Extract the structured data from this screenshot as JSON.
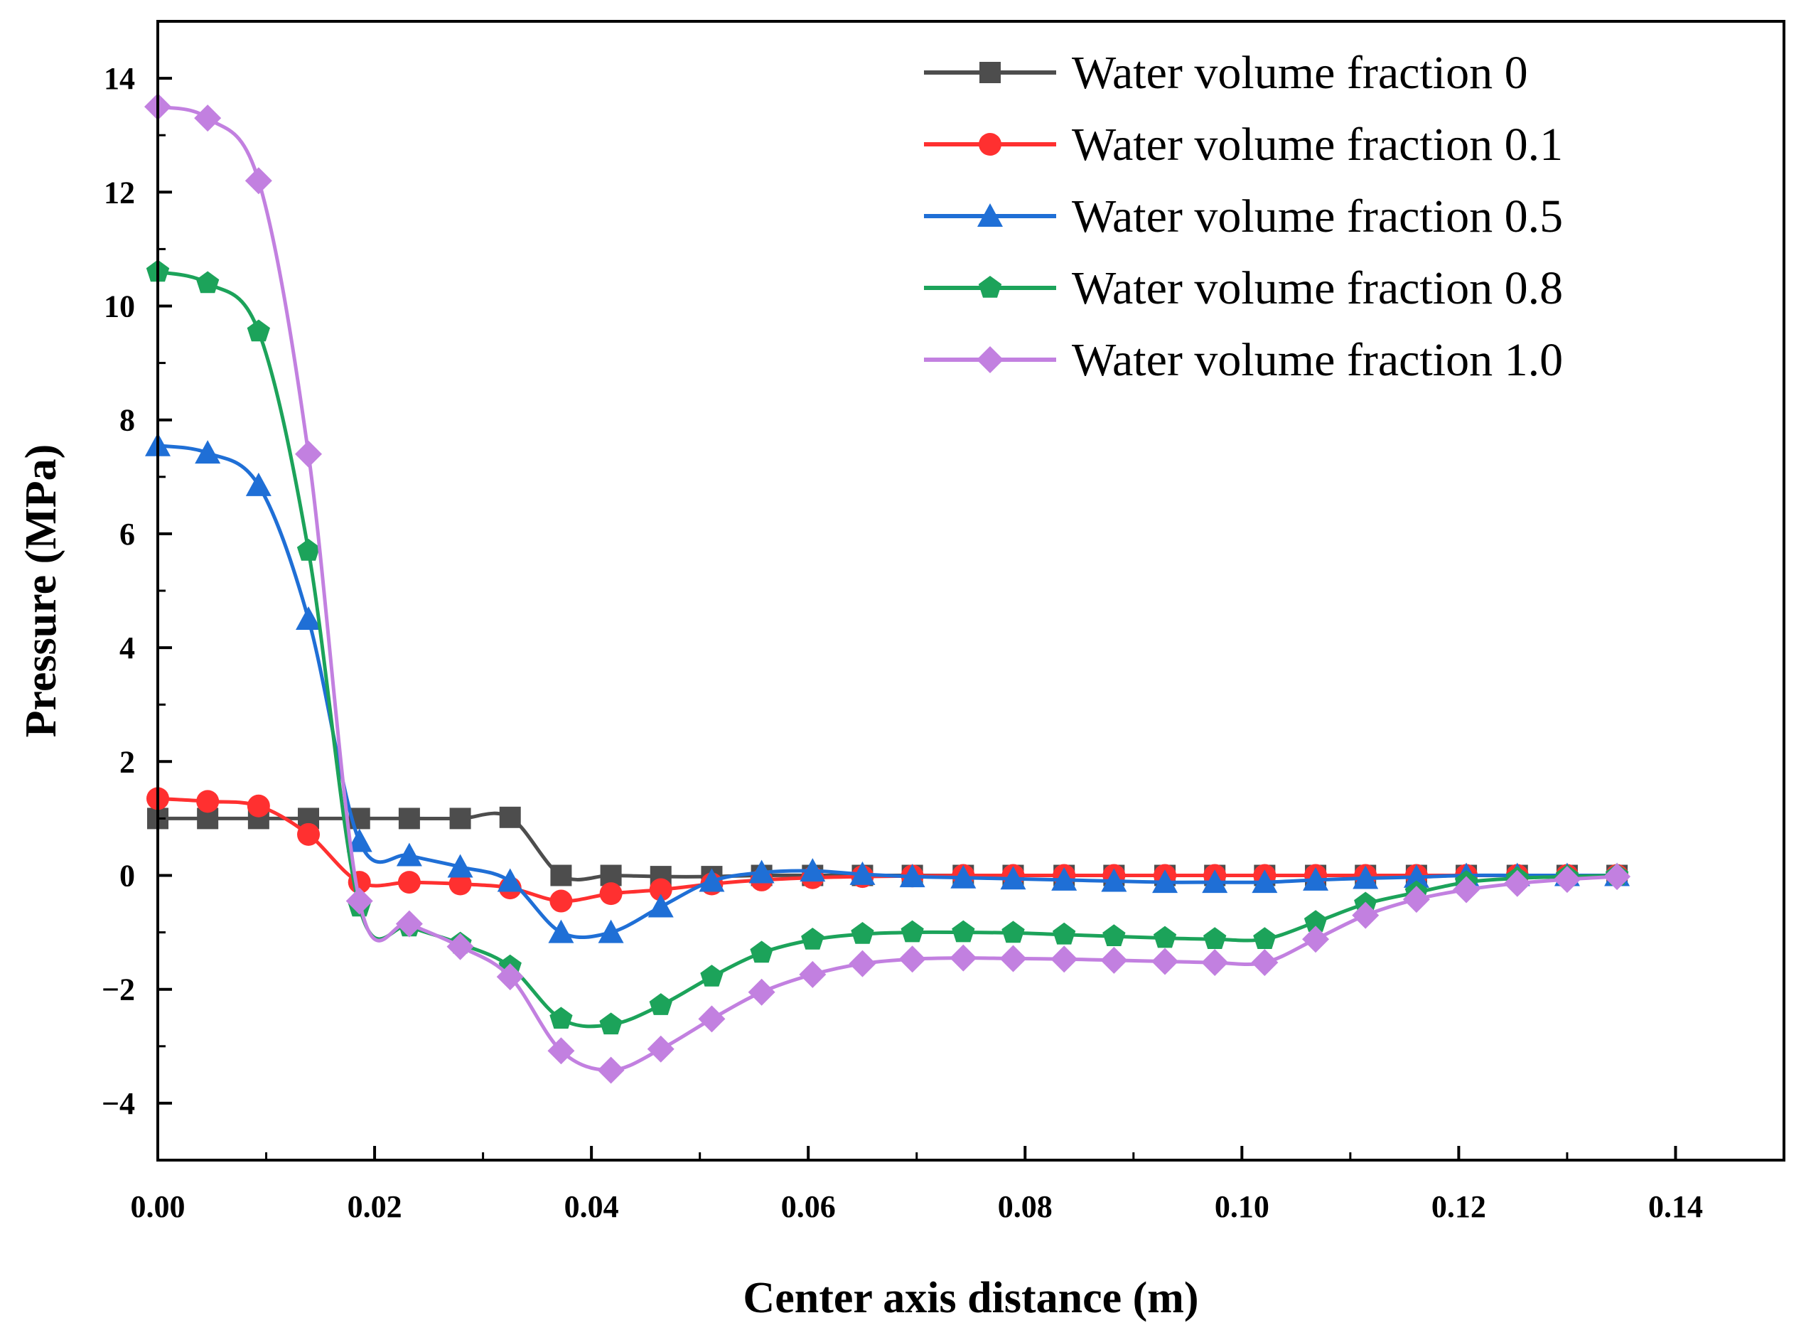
{
  "chart_data": {
    "type": "line",
    "title": "",
    "xlabel": "Center axis distance (m)",
    "ylabel": "Pressure (MPa)",
    "xlim": [
      0,
      0.15
    ],
    "ylim": [
      -5,
      15
    ],
    "xticks": [
      0.0,
      0.02,
      0.04,
      0.06,
      0.08,
      0.1,
      0.12,
      0.14
    ],
    "xtick_labels": [
      "0.00",
      "0.02",
      "0.04",
      "0.06",
      "0.08",
      "0.10",
      "0.12",
      "0.14"
    ],
    "yticks": [
      -4,
      -2,
      0,
      2,
      4,
      6,
      8,
      10,
      12,
      14
    ],
    "ytick_labels": [
      "−4",
      "−2",
      "0",
      "2",
      "4",
      "6",
      "8",
      "10",
      "12",
      "14"
    ],
    "legend_position": "top-right",
    "x": [
      0.0,
      0.0046,
      0.0093,
      0.0139,
      0.0186,
      0.0232,
      0.0279,
      0.0325,
      0.0372,
      0.0418,
      0.0464,
      0.0511,
      0.0557,
      0.0604,
      0.065,
      0.0696,
      0.0743,
      0.0789,
      0.0836,
      0.0882,
      0.0929,
      0.0975,
      0.1021,
      0.1068,
      0.1114,
      0.1161,
      0.1207,
      0.1254,
      0.13,
      0.1346
    ],
    "series": [
      {
        "name": "Water volume fraction 0",
        "color": "#4d4d4d",
        "marker": "square",
        "values": [
          1.0,
          1.0,
          1.0,
          1.0,
          1.0,
          1.0,
          1.0,
          1.02,
          0.0,
          0.0,
          -0.02,
          -0.02,
          0.0,
          0.0,
          0.0,
          0.0,
          0.0,
          0.0,
          0.0,
          0.0,
          0.0,
          0.0,
          0.0,
          0.0,
          0.0,
          0.0,
          0.0,
          0.0,
          0.0,
          0.0
        ]
      },
      {
        "name": "Water volume fraction 0.1",
        "color": "#ff3030",
        "marker": "circle",
        "values": [
          1.35,
          1.3,
          1.22,
          0.72,
          -0.12,
          -0.12,
          -0.15,
          -0.22,
          -0.45,
          -0.32,
          -0.25,
          -0.15,
          -0.08,
          -0.04,
          -0.02,
          -0.01,
          0.0,
          0.0,
          0.0,
          0.0,
          0.0,
          0.0,
          0.0,
          0.0,
          0.0,
          0.0,
          0.0,
          0.0,
          0.0,
          0.0
        ]
      },
      {
        "name": "Water volume fraction 0.5",
        "color": "#1f6fd6",
        "marker": "triangle",
        "values": [
          7.55,
          7.42,
          6.85,
          4.5,
          0.6,
          0.35,
          0.15,
          -0.1,
          -1.0,
          -1.0,
          -0.55,
          -0.1,
          0.05,
          0.08,
          0.02,
          -0.02,
          -0.04,
          -0.06,
          -0.08,
          -0.1,
          -0.12,
          -0.12,
          -0.12,
          -0.08,
          -0.05,
          -0.03,
          0.0,
          0.0,
          0.0,
          0.0
        ]
      },
      {
        "name": "Water volume fraction 0.8",
        "color": "#1ca35a",
        "marker": "pentagon",
        "values": [
          10.6,
          10.4,
          9.55,
          5.7,
          -0.55,
          -0.9,
          -1.2,
          -1.6,
          -2.52,
          -2.62,
          -2.28,
          -1.78,
          -1.36,
          -1.13,
          -1.03,
          -1.0,
          -1.0,
          -1.01,
          -1.04,
          -1.07,
          -1.1,
          -1.12,
          -1.12,
          -0.82,
          -0.5,
          -0.3,
          -0.12,
          -0.05,
          -0.02,
          0.0
        ]
      },
      {
        "name": "Water volume fraction 1.0",
        "color": "#c280e0",
        "marker": "diamond",
        "values": [
          13.5,
          13.3,
          12.2,
          7.4,
          -0.45,
          -0.85,
          -1.25,
          -1.78,
          -3.08,
          -3.42,
          -3.05,
          -2.52,
          -2.05,
          -1.74,
          -1.55,
          -1.47,
          -1.45,
          -1.46,
          -1.47,
          -1.49,
          -1.51,
          -1.53,
          -1.53,
          -1.12,
          -0.7,
          -0.42,
          -0.25,
          -0.14,
          -0.07,
          -0.02
        ]
      }
    ]
  }
}
